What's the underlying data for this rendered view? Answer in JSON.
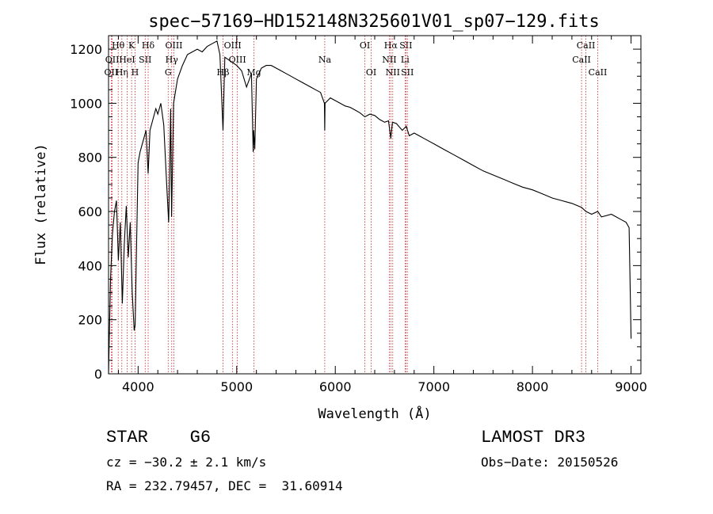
{
  "chart_data": {
    "type": "line",
    "title": "spec−57169−HD152148N325601V01_sp07−129.fits",
    "xlabel": "Wavelength (Å)",
    "ylabel": "Flux (relative)",
    "xlim": [
      3700,
      9100
    ],
    "ylim": [
      0,
      1250
    ],
    "x_ticks": [
      4000,
      5000,
      6000,
      7000,
      8000,
      9000
    ],
    "x_tick_labels": [
      "4000",
      "5000",
      "6000",
      "7000",
      "8000",
      "9000"
    ],
    "y_ticks": [
      0,
      200,
      400,
      600,
      800,
      1000,
      1200
    ],
    "y_tick_labels": [
      "0",
      "200",
      "400",
      "600",
      "800",
      "1000",
      "1200"
    ],
    "series": [
      {
        "name": "spectrum",
        "x": [
          3700,
          3720,
          3740,
          3760,
          3780,
          3800,
          3820,
          3840,
          3860,
          3880,
          3900,
          3920,
          3940,
          3960,
          3970,
          3980,
          4000,
          4020,
          4050,
          4080,
          4102,
          4120,
          4150,
          4180,
          4200,
          4230,
          4260,
          4290,
          4310,
          4320,
          4330,
          4340,
          4360,
          4400,
          4450,
          4500,
          4550,
          4600,
          4650,
          4700,
          4750,
          4800,
          4830,
          4861,
          4880,
          4920,
          4960,
          5000,
          5050,
          5100,
          5150,
          5167,
          5172,
          5183,
          5200,
          5250,
          5300,
          5350,
          5400,
          5450,
          5500,
          5550,
          5600,
          5650,
          5700,
          5750,
          5800,
          5850,
          5890,
          5893,
          5896,
          5950,
          6000,
          6050,
          6100,
          6150,
          6200,
          6250,
          6300,
          6350,
          6400,
          6450,
          6500,
          6540,
          6563,
          6580,
          6620,
          6680,
          6720,
          6750,
          6800,
          6850,
          6900,
          6950,
          7000,
          7100,
          7200,
          7300,
          7400,
          7500,
          7600,
          7700,
          7800,
          7900,
          8000,
          8100,
          8200,
          8300,
          8400,
          8498,
          8542,
          8600,
          8662,
          8700,
          8800,
          8900,
          8950,
          8980,
          9000
        ],
        "values": [
          0,
          350,
          520,
          600,
          640,
          420,
          560,
          260,
          480,
          620,
          430,
          560,
          300,
          160,
          180,
          380,
          780,
          820,
          860,
          900,
          740,
          900,
          940,
          980,
          960,
          1000,
          920,
          700,
          560,
          760,
          980,
          580,
          1000,
          1090,
          1140,
          1180,
          1190,
          1200,
          1190,
          1210,
          1220,
          1230,
          1180,
          900,
          1170,
          1160,
          1150,
          1140,
          1120,
          1060,
          1110,
          820,
          900,
          830,
          1090,
          1130,
          1140,
          1140,
          1130,
          1120,
          1110,
          1100,
          1090,
          1080,
          1070,
          1060,
          1050,
          1040,
          1000,
          900,
          1000,
          1020,
          1010,
          1000,
          990,
          985,
          975,
          965,
          950,
          960,
          955,
          940,
          930,
          935,
          870,
          930,
          925,
          900,
          915,
          880,
          890,
          880,
          870,
          860,
          850,
          830,
          810,
          790,
          770,
          750,
          735,
          720,
          705,
          690,
          680,
          665,
          650,
          640,
          630,
          615,
          600,
          590,
          600,
          580,
          590,
          570,
          560,
          540,
          130
        ]
      }
    ],
    "lines": [
      {
        "name": "OII",
        "wavelength": 3727,
        "row": 2
      },
      {
        "name": "Hθ",
        "wavelength": 3798,
        "row": 0
      },
      {
        "name": "OII",
        "wavelength": 3737,
        "row": 1
      },
      {
        "name": "Hη",
        "wavelength": 3835,
        "row": 2
      },
      {
        "name": "HeI",
        "wavelength": 3889,
        "row": 1
      },
      {
        "name": "K",
        "wavelength": 3934,
        "row": 0
      },
      {
        "name": "H",
        "wavelength": 3969,
        "row": 2
      },
      {
        "name": "SII",
        "wavelength": 4072,
        "row": 1
      },
      {
        "name": "Hδ",
        "wavelength": 4102,
        "row": 0
      },
      {
        "name": "OIII",
        "wavelength": 4363,
        "row": 0
      },
      {
        "name": "Hγ",
        "wavelength": 4341,
        "row": 1
      },
      {
        "name": "G",
        "wavelength": 4305,
        "row": 2
      },
      {
        "name": "Hβ",
        "wavelength": 4861,
        "row": 2
      },
      {
        "name": "OIII",
        "wavelength": 4959,
        "row": 0
      },
      {
        "name": "OIII",
        "wavelength": 5007,
        "row": 1
      },
      {
        "name": "Mg",
        "wavelength": 5175,
        "row": 2
      },
      {
        "name": "Na",
        "wavelength": 5893,
        "row": 1
      },
      {
        "name": "OI",
        "wavelength": 6300,
        "row": 0
      },
      {
        "name": "OI",
        "wavelength": 6364,
        "row": 2
      },
      {
        "name": "Hα",
        "wavelength": 6563,
        "row": 0
      },
      {
        "name": "NII",
        "wavelength": 6548,
        "row": 1
      },
      {
        "name": "NII",
        "wavelength": 6583,
        "row": 2
      },
      {
        "name": "SII",
        "wavelength": 6716,
        "row": 0
      },
      {
        "name": "Li",
        "wavelength": 6708,
        "row": 1
      },
      {
        "name": "SII",
        "wavelength": 6731,
        "row": 2
      },
      {
        "name": "CaII",
        "wavelength": 8542,
        "row": 0
      },
      {
        "name": "CaII",
        "wavelength": 8498,
        "row": 1
      },
      {
        "name": "CaII",
        "wavelength": 8662,
        "row": 2
      }
    ]
  },
  "info": {
    "classification": "STAR    G6",
    "survey": "LAMOST DR3",
    "cz": "cz = −30.2 ± 2.1 km/s",
    "obs_date": "Obs−Date: 20150526",
    "coords": "RA = 232.79457, DEC =  31.60914"
  },
  "colors": {
    "line_marker": "#cc2222",
    "spectrum": "#000000",
    "axes": "#000000"
  }
}
